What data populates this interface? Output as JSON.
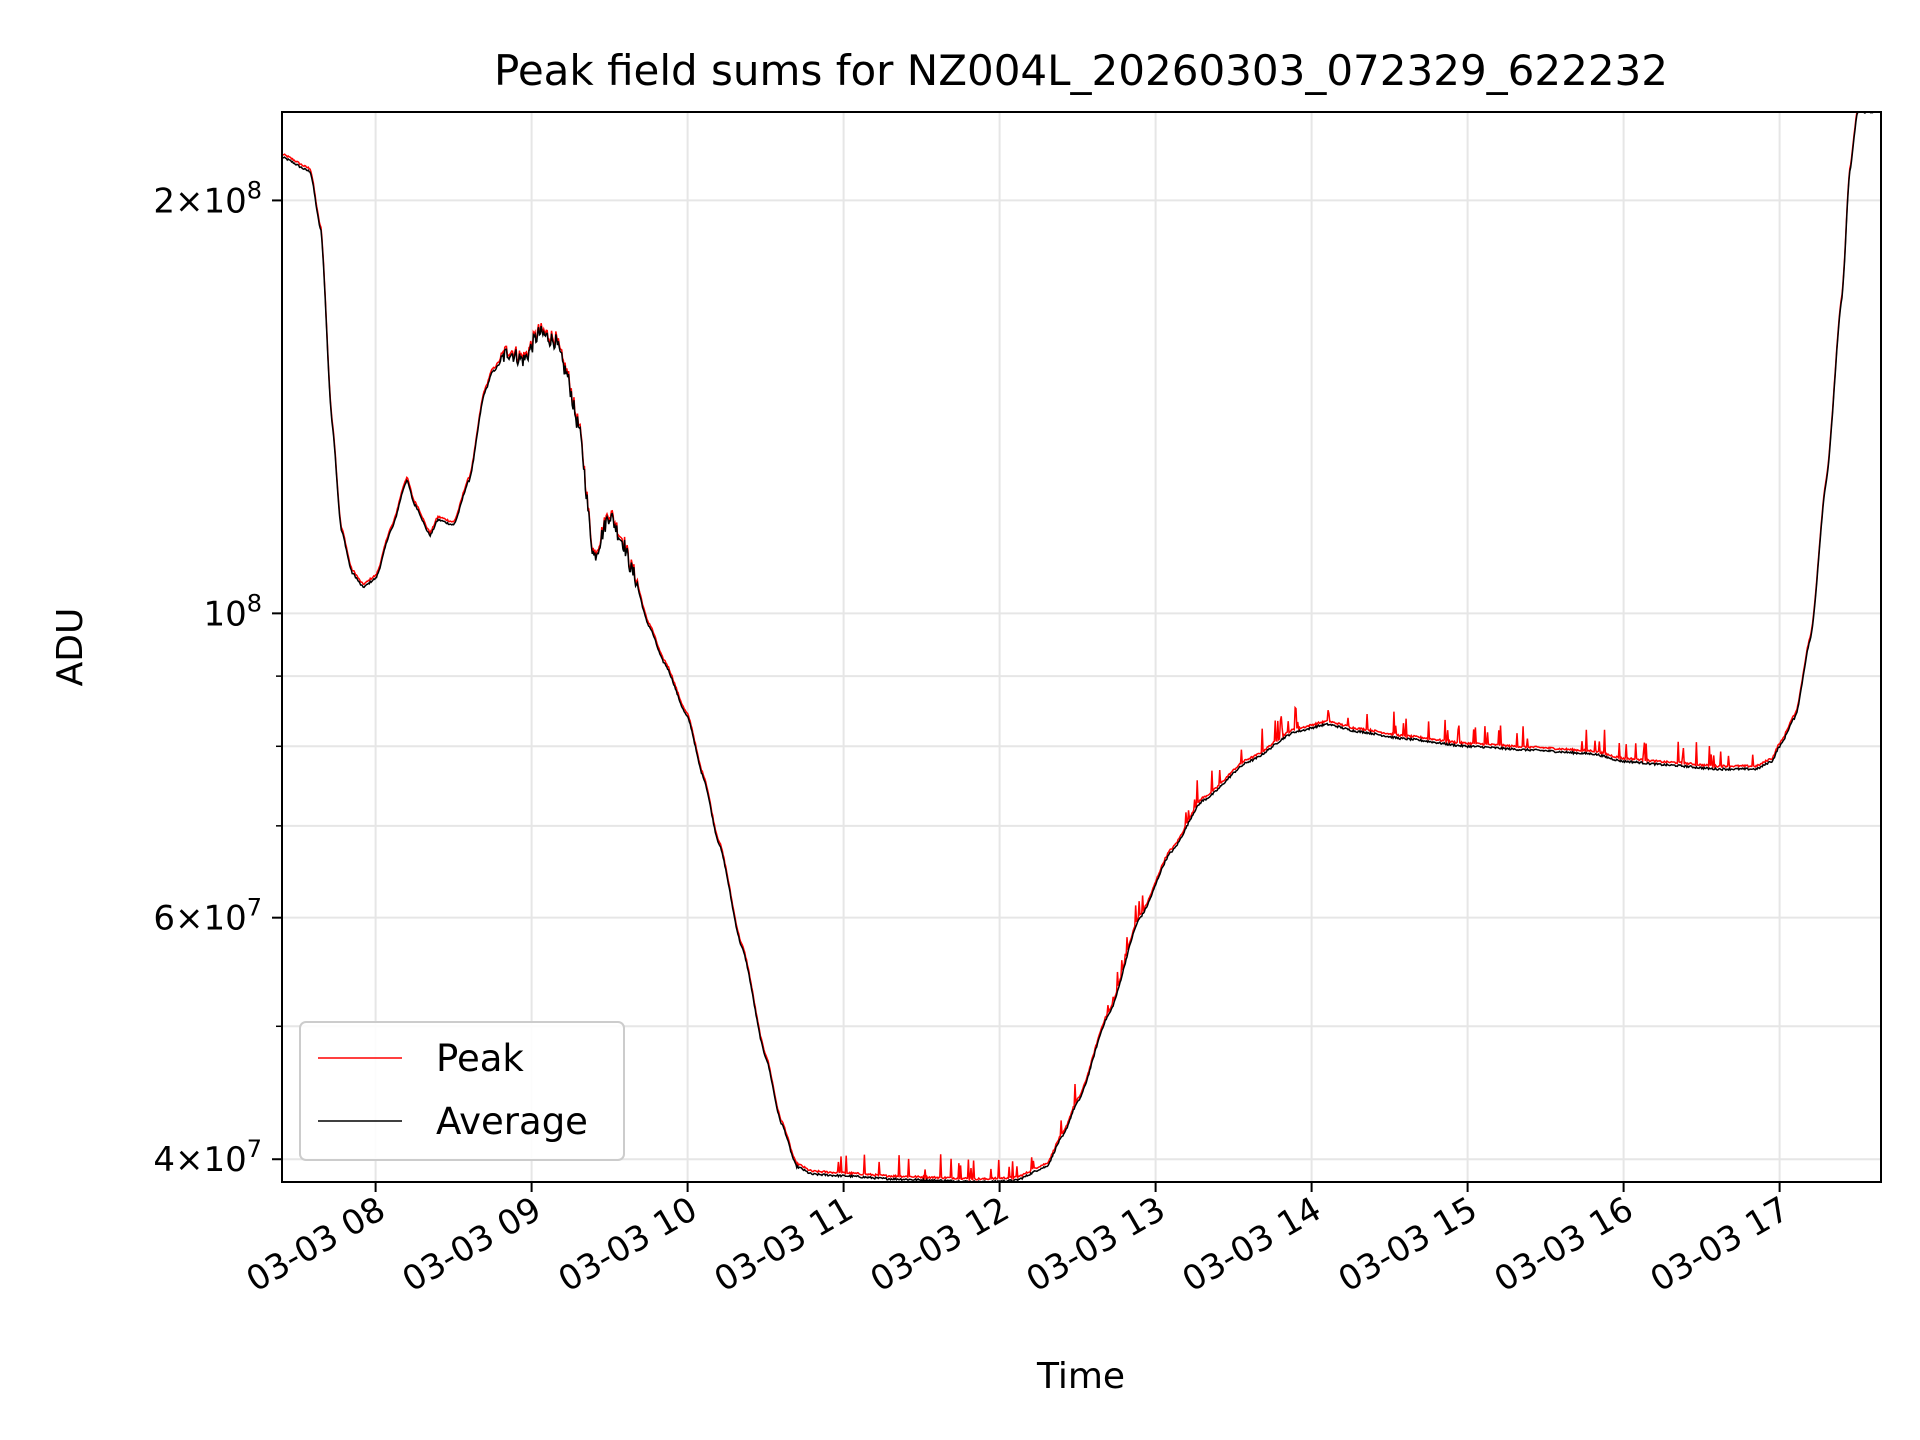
{
  "chart_data": {
    "type": "line",
    "title": "Peak field sums for NZ004L_20260303_072329_622232",
    "xlabel": "Time",
    "ylabel": "ADU",
    "yscale": "log",
    "xlim": [
      7.4,
      17.65
    ],
    "ylim": [
      38500000,
      232000000
    ],
    "grid": true,
    "legend_loc": "lower-left",
    "x_ticks": [
      {
        "value": 8,
        "label": "03-03 08"
      },
      {
        "value": 9,
        "label": "03-03 09"
      },
      {
        "value": 10,
        "label": "03-03 10"
      },
      {
        "value": 11,
        "label": "03-03 11"
      },
      {
        "value": 12,
        "label": "03-03 12"
      },
      {
        "value": 13,
        "label": "03-03 13"
      },
      {
        "value": 14,
        "label": "03-03 14"
      },
      {
        "value": 15,
        "label": "03-03 15"
      },
      {
        "value": 16,
        "label": "03-03 16"
      },
      {
        "value": 17,
        "label": "03-03 17"
      }
    ],
    "y_major_ticks": [
      {
        "value": 40000000,
        "mantissa": "4",
        "exponent": "7"
      },
      {
        "value": 60000000,
        "mantissa": "6",
        "exponent": "7"
      },
      {
        "value": 100000000,
        "mantissa": "",
        "exponent": "8"
      },
      {
        "value": 200000000,
        "mantissa": "2",
        "exponent": "8"
      }
    ],
    "y_minor_ticks": [
      50000000,
      70000000,
      80000000,
      90000000
    ],
    "x": [
      7.4,
      7.58,
      7.65,
      7.72,
      7.78,
      7.85,
      7.92,
      8.0,
      8.1,
      8.2,
      8.25,
      8.35,
      8.4,
      8.5,
      8.6,
      8.7,
      8.75,
      8.85,
      8.95,
      9.05,
      9.15,
      9.22,
      9.3,
      9.4,
      9.5,
      9.58,
      9.65,
      9.75,
      9.85,
      10.0,
      10.1,
      10.2,
      10.35,
      10.5,
      10.6,
      10.7,
      10.8,
      11.0,
      11.3,
      11.6,
      11.9,
      12.1,
      12.3,
      12.4,
      12.5,
      12.7,
      12.9,
      13.1,
      13.3,
      13.6,
      13.9,
      14.1,
      14.3,
      14.6,
      15.0,
      15.4,
      15.8,
      16.0,
      16.3,
      16.6,
      16.85,
      16.95,
      17.0,
      17.1,
      17.2,
      17.3,
      17.4,
      17.45,
      17.5,
      17.65
    ],
    "series": [
      {
        "name": "Average",
        "color": "#000000",
        "values": [
          215000000,
          210000000,
          190000000,
          138000000,
          115000000,
          107000000,
          104500000,
          106000000,
          115000000,
          125000000,
          120000000,
          114000000,
          117000000,
          116000000,
          125000000,
          145000000,
          150000000,
          155000000,
          153000000,
          160000000,
          158000000,
          150000000,
          137000000,
          110000000,
          118000000,
          113000000,
          107000000,
          98000000,
          92000000,
          84000000,
          76000000,
          68000000,
          57000000,
          47500000,
          42500000,
          39500000,
          39000000,
          38900000,
          38700000,
          38600000,
          38500000,
          38600000,
          39500000,
          41500000,
          44000000,
          51000000,
          60000000,
          67000000,
          73000000,
          78000000,
          82000000,
          83000000,
          82000000,
          81000000,
          80000000,
          79500000,
          79000000,
          78000000,
          77500000,
          77000000,
          77000000,
          78000000,
          80000000,
          84000000,
          96000000,
          125000000,
          170000000,
          210000000,
          232000000,
          232000000
        ]
      }
    ],
    "peak_offset_fraction": 0.005,
    "legend": [
      {
        "label": "Peak",
        "color": "#ff0000"
      },
      {
        "label": "Average",
        "color": "#000000"
      }
    ]
  }
}
